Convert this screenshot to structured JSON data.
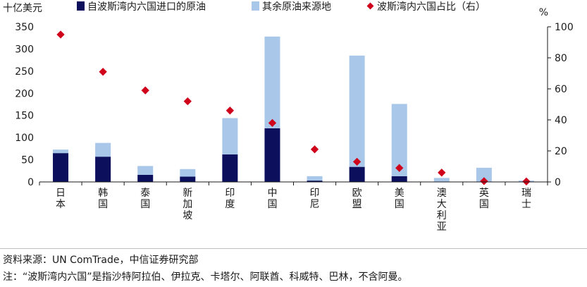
{
  "chart_data": {
    "type": "bar",
    "stacked": true,
    "left_unit": "十亿美元",
    "right_unit": "%",
    "categories": [
      "日本",
      "韩国",
      "泰国",
      "新加坡",
      "印度",
      "中国",
      "印尼",
      "欧盟",
      "美国",
      "澳大利亚",
      "英国",
      "瑞士"
    ],
    "category_lines": [
      [
        "日",
        "本"
      ],
      [
        "韩",
        "国"
      ],
      [
        "泰",
        "国"
      ],
      [
        "新",
        "加",
        "坡"
      ],
      [
        "印",
        "度"
      ],
      [
        "中",
        "国"
      ],
      [
        "印",
        "尼"
      ],
      [
        "欧",
        "盟"
      ],
      [
        "美",
        "国"
      ],
      [
        "澳",
        "大",
        "利",
        "亚"
      ],
      [
        "英",
        "国"
      ],
      [
        "瑞",
        "士"
      ]
    ],
    "series": [
      {
        "name": "自波斯湾内六国进口的原油",
        "color": "#0b0f5c",
        "axis": "left",
        "values": [
          65,
          57,
          16,
          12,
          62,
          121,
          3,
          34,
          13,
          0,
          0,
          0
        ]
      },
      {
        "name": "其余原油来源地",
        "color": "#a9c7e8",
        "axis": "left",
        "values": [
          8,
          31,
          20,
          17,
          82,
          207,
          10,
          251,
          163,
          9,
          32,
          3
        ]
      },
      {
        "name": "波斯湾内六国占比（右）",
        "color": "#d0021b",
        "axis": "right",
        "type": "scatter",
        "values": [
          95,
          71,
          59,
          52,
          46,
          38,
          21,
          13,
          9,
          6,
          0.5,
          0.3
        ]
      }
    ],
    "left_ylim": [
      0,
      350
    ],
    "left_ticks": [
      0,
      50,
      100,
      150,
      200,
      250,
      300,
      350
    ],
    "right_ylim": [
      0,
      100
    ],
    "right_ticks": [
      0,
      20,
      40,
      60,
      80,
      100
    ],
    "legend_position": "top"
  },
  "footer": {
    "source": "资料来源：UN ComTrade，中信证券研究部",
    "note": "注：“波斯湾内六国”是指沙特阿拉伯、伊拉克、卡塔尔、阿联酋、科威特、巴林，不含阿曼。"
  }
}
